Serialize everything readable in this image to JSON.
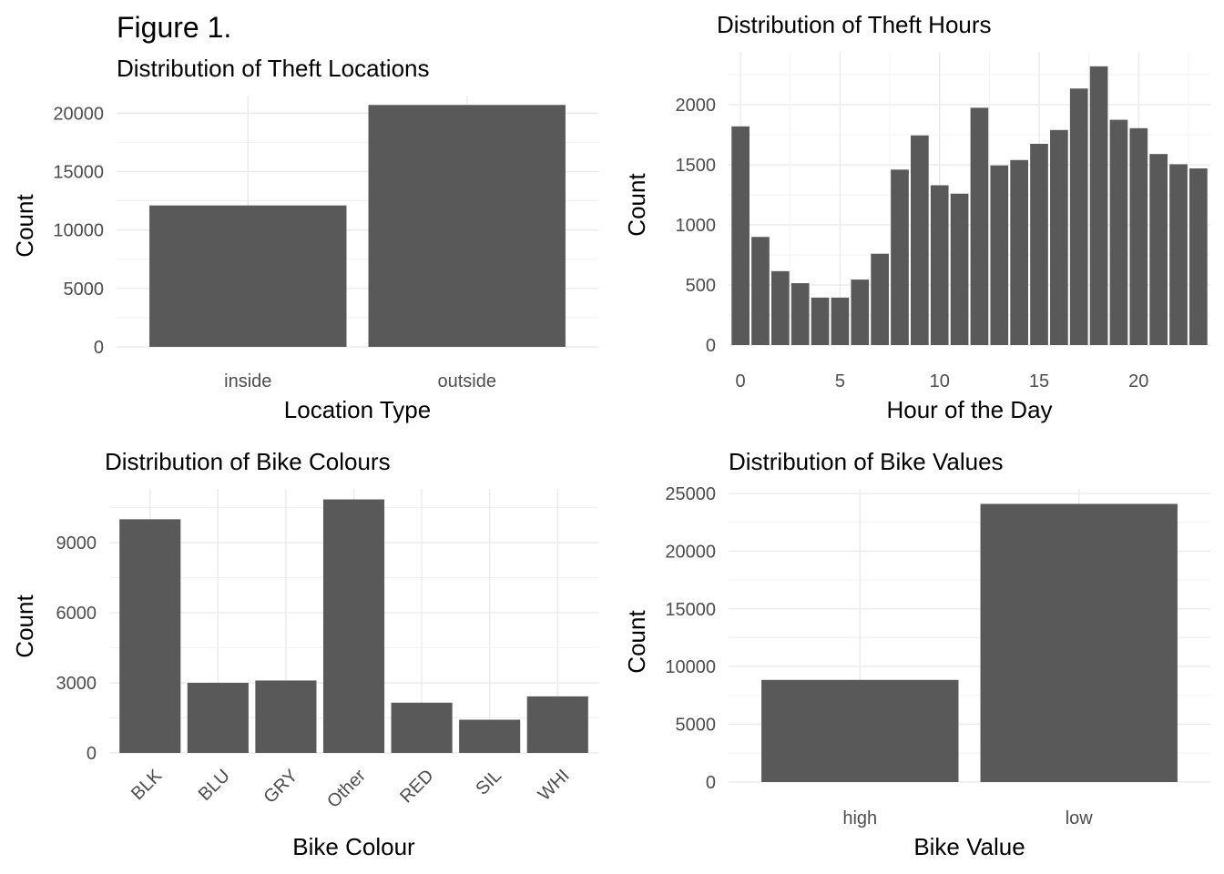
{
  "figure": {
    "title": "Figure 1."
  },
  "colors": {
    "bar": "#595959",
    "grid_major": "#ebebeb",
    "grid_minor": "#f3f3f3",
    "tick_label": "#4d4d4d",
    "background": "#ffffff"
  },
  "chart_data": [
    {
      "type": "bar",
      "title": "Distribution of Theft Locations",
      "xlabel": "Location Type",
      "ylabel": "Count",
      "categories": [
        "inside",
        "outside"
      ],
      "values": [
        12100,
        20700
      ],
      "ylim": [
        0,
        21500
      ],
      "yticks": [
        0,
        5000,
        10000,
        15000,
        20000
      ],
      "grid": true,
      "legend": "none"
    },
    {
      "type": "bar",
      "title": "Distribution of Theft Hours",
      "xlabel": "Hour of the Day",
      "ylabel": "Count",
      "x": [
        0,
        1,
        2,
        3,
        4,
        5,
        6,
        7,
        8,
        9,
        10,
        11,
        12,
        13,
        14,
        15,
        16,
        17,
        18,
        19,
        20,
        21,
        22,
        23
      ],
      "values": [
        1820,
        900,
        615,
        515,
        395,
        395,
        545,
        760,
        1460,
        1745,
        1330,
        1260,
        1975,
        1495,
        1540,
        1675,
        1790,
        2135,
        2320,
        1875,
        1805,
        1590,
        1505,
        1470
      ],
      "xlim": [
        -0.6,
        23.6
      ],
      "xticks": [
        0,
        5,
        10,
        15,
        20
      ],
      "ylim": [
        0,
        2440
      ],
      "yticks": [
        0,
        500,
        1000,
        1500,
        2000
      ],
      "grid": true,
      "legend": "none"
    },
    {
      "type": "bar",
      "title": "Distribution of Bike Colours",
      "xlabel": "Bike Colour",
      "ylabel": "Count",
      "categories": [
        "BLK",
        "BLU",
        "GRY",
        "Other",
        "RED",
        "SIL",
        "WHI"
      ],
      "values": [
        10000,
        3000,
        3100,
        10850,
        2150,
        1420,
        2420
      ],
      "ylim": [
        0,
        11300
      ],
      "yticks": [
        0,
        3000,
        6000,
        9000
      ],
      "grid": true,
      "legend": "none"
    },
    {
      "type": "bar",
      "title": "Distribution of Bike Values",
      "xlabel": "Bike Value",
      "ylabel": "Count",
      "categories": [
        "high",
        "low"
      ],
      "values": [
        8850,
        24100
      ],
      "ylim": [
        0,
        25400
      ],
      "yticks": [
        0,
        5000,
        10000,
        15000,
        20000,
        25000
      ],
      "grid": true,
      "legend": "none"
    }
  ]
}
